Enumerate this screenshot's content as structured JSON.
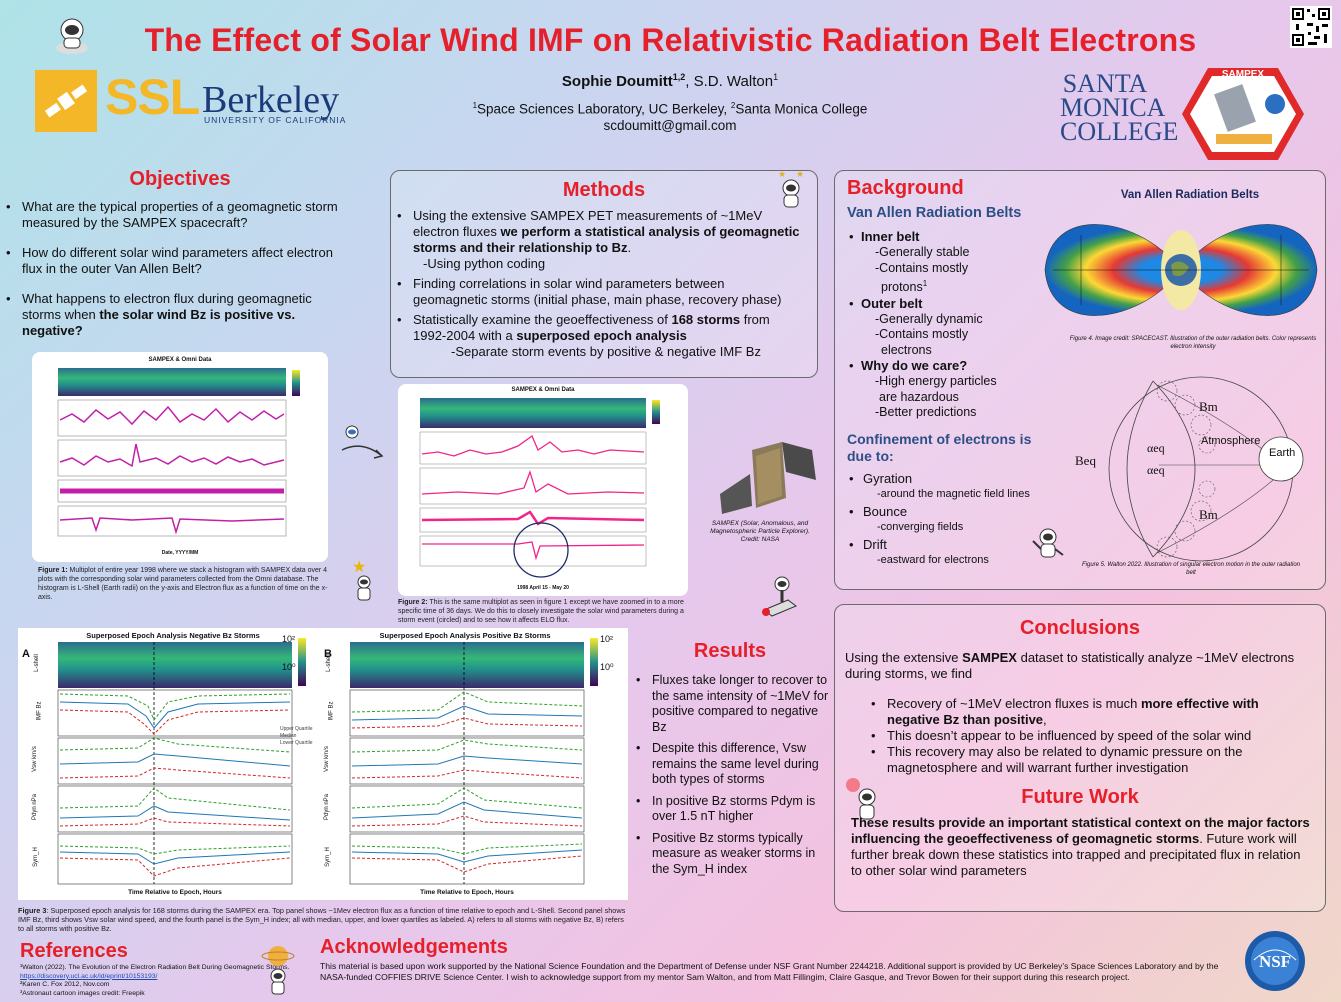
{
  "header": {
    "title": "The Effect of Solar Wind IMF on Relativistic Radiation Belt Electrons",
    "author_main": "Sophie Doumitt",
    "author_main_sup": "1,2",
    "author_sep": ", ",
    "author2": "S.D. Walton",
    "author2_sup": "1",
    "affil_sup1": "1",
    "affil1": "Space Sciences Laboratory, UC Berkeley, ",
    "affil_sup2": "2",
    "affil2": "Santa Monica College",
    "email": "scdoumitt@gmail.com"
  },
  "logos": {
    "ssl": "SSL",
    "berkeley": "Berkeley",
    "berkeley_sub": "UNIVERSITY OF CALIFORNIA",
    "smc1": "SANTA",
    "smc2": "MONICA",
    "smc3": "COLLEGE",
    "sampex": "SAMPEX",
    "nsf": "NSF"
  },
  "objectives": {
    "heading": "Objectives",
    "q1": "What are the typical properties of a geomagnetic storm measured by the SAMPEX spacecraft?",
    "q2": "How do different solar wind parameters affect electron flux in the outer Van Allen Belt?",
    "q3a": "What happens to electron flux during geomagnetic storms when ",
    "q3b": "the solar wind Bz is positive vs. negative?"
  },
  "methods": {
    "heading": "Methods",
    "m1a": "Using the extensive SAMPEX PET measurements of ~1MeV electron fluxes ",
    "m1b": "we perform a statistical analysis of geomagnetic storms and their relationship to Bz",
    "m1c": ".",
    "m1sub": "-Using python coding",
    "m2": "Finding correlations in solar wind parameters between geomagnetic storms (initial phase, main phase, recovery phase)",
    "m3a": "Statistically examine the geoeffectiveness of ",
    "m3b": "168 storms",
    "m3c": " from 1992-2004 with a ",
    "m3d": "superposed epoch analysis",
    "m3sub": "-Separate storm events by positive & negative IMF Bz"
  },
  "background": {
    "heading": "Background",
    "sub1": "Van Allen Radiation Belts",
    "inner": "Inner belt",
    "inner_a": "-Generally stable",
    "inner_b": "-Contains mostly",
    "inner_c": "protons",
    "inner_c_sup": "1",
    "outer": "Outer belt",
    "outer_a": "-Generally dynamic",
    "outer_b": "-Contains mostly",
    "outer_c": "electrons",
    "why": "Why do we care?",
    "why_a": "-High energy particles",
    "why_b": "are hazardous",
    "why_c": "-Better predictions",
    "sub2": "Confinement of electrons is due to:",
    "gyr": "Gyration",
    "gyr_a": "-around the magnetic field lines",
    "bou": "Bounce",
    "bou_a": "-converging fields",
    "dri": "Drift",
    "dri_a": "-eastward for electrons",
    "fig_title": "Van Allen Radiation Belts",
    "fig4": "Figure 4. Image credit: SPACECAST. Illustration of the outer radiation belts. Color represents electron intensity",
    "fig5": "Figure 5. Walton 2022. Illustration of singular electron motion in the outer radiation belt",
    "d_bm": "Bm",
    "d_bm2": "Bm",
    "d_beq": "Beq",
    "d_aeq": "αeq",
    "d_aeq2": "αeq",
    "d_atm": "Atmosphere",
    "d_earth": "Earth"
  },
  "figures": {
    "f1_title": "SAMPEX & Omni Data",
    "f1_caption_head": "Figure 1:",
    "f1_caption": " Multiplot of entire year 1998 where we stack a histogram with SAMPEX data over 4 plots with the corresponding solar wind parameters collected from the Omni database. The histogram is L-Shell (Earth radii) on the y-axis and Electron flux as a function of time on the x-axis.",
    "f1_xlabel": "Date, YYYY/MM",
    "f2_title": "SAMPEX & Omni Data",
    "f2_caption_head": "Figure 2:",
    "f2_caption": " This is the same multiplot as seen in figure 1 except we have zoomed in to a more specific time of 36 days. We do this to closely investigate the solar wind parameters during a storm event (circled) and to see how it affects ELO flux.",
    "f2_xlabel": "1998 April 15 - May 20",
    "sampex_caption": "SAMPEX (Solar, Anomalous, and Magnetospheric Particle Explorer). Credit: NASA",
    "f3a_title": "Superposed Epoch Analysis Negative Bz Storms",
    "f3b_title": "Superposed Epoch Analysis Positive Bz Storms",
    "f3_label_a": "A",
    "f3_label_b": "B",
    "f3_xlabel": "Time Relative to Epoch, Hours",
    "f3_yl1": "L-shell",
    "f3_yl2": "IMF Bz",
    "f3_yl3": "Vsw km/s",
    "f3_yl4": "Pdyn nPa",
    "f3_yl5": "Sym_H",
    "f3_cb_hi": "10²",
    "f3_cb_lo": "10⁰",
    "legend1": "Upper Quartile",
    "legend2": "Median",
    "legend3": "Lower Quartile",
    "f3_caption_head": "Figure 3",
    "f3_caption": ": Superposed epoch analysis for 168 storms during the SAMPEX era. Top panel shows ~1Mev electron flux as a function of time relative to epoch and L-Shell. Second panel shows IMF Bz, third shows Vsw solar wind speed, and the fourth panel  is the Sym_H index; all with median, upper, and lower quartiles as labeled. A) refers to all storms with negative Bz, B) refers to all storms with positive Bz."
  },
  "results": {
    "heading": "Results",
    "r1": "Fluxes take longer to recover to the same intensity  of ~1MeV for positive compared to negative Bz",
    "r2": "Despite this difference, Vsw remains the same level during both types of storms",
    "r3": "In positive Bz storms Pdym is over 1.5 nT higher",
    "r4": "Positive Bz storms typically measure as weaker storms in the Sym_H index"
  },
  "conclusions": {
    "heading": "Conclusions",
    "intro_a": "Using the extensive ",
    "intro_b": "SAMPEX",
    "intro_c": " dataset to statistically analyze ~1MeV electrons during storms, we find",
    "c1a": "Recovery of ~1MeV electron fluxes is much ",
    "c1b": "more effective with negative Bz than positive",
    "c1c": ",",
    "c2": "This doesn’t appear to be influenced by speed of the solar wind",
    "c3": "This recovery may also be related to dynamic pressure on the magnetosphere and will warrant further investigation",
    "fw_heading": "Future Work",
    "fw_a": "These results provide an important statistical context on the major factors influencing the geoeffectiveness of geomagnetic storms",
    "fw_b": ". Future work will further break down these statistics into trapped and precipitated flux in relation to other solar wind parameters"
  },
  "references": {
    "heading": "References",
    "r1": "¹Walton (2022). The Evolution of the Electron Radiation Belt During Geomagnetic Storms. ",
    "r1_link": "https://discovery.ucl.ac.uk/id/eprint/10153193/",
    "r2": "²Karen C. Fox 2012, Nov.com",
    "r3": "³Astronaut cartoon images credit: Freepik"
  },
  "acknowledgements": {
    "heading": "Acknowledgements",
    "text": "This material is based upon work supported by the National Science Foundation and the Department of Defense under NSF Grant Number 2244218. Additional support is provided by UC Berkeley’s Space Sciences Laboratory and by the NASA-funded COFFIES DRIVE Science Center. I wish to acknowledge support from my mentor Sam Walton, and from Matt Fillingim, Claire Gasque, and Trevor Bowen for their support during this research project."
  },
  "colors": {
    "title": "#e6202a",
    "ssl": "#f4b728",
    "berkeley": "#1a3a7a",
    "series_upper": "#2ca02c",
    "series_median": "#1f77b4",
    "series_lower": "#d62728",
    "omni_magenta": "#c21fa8",
    "omni_pink": "#f0248a"
  }
}
